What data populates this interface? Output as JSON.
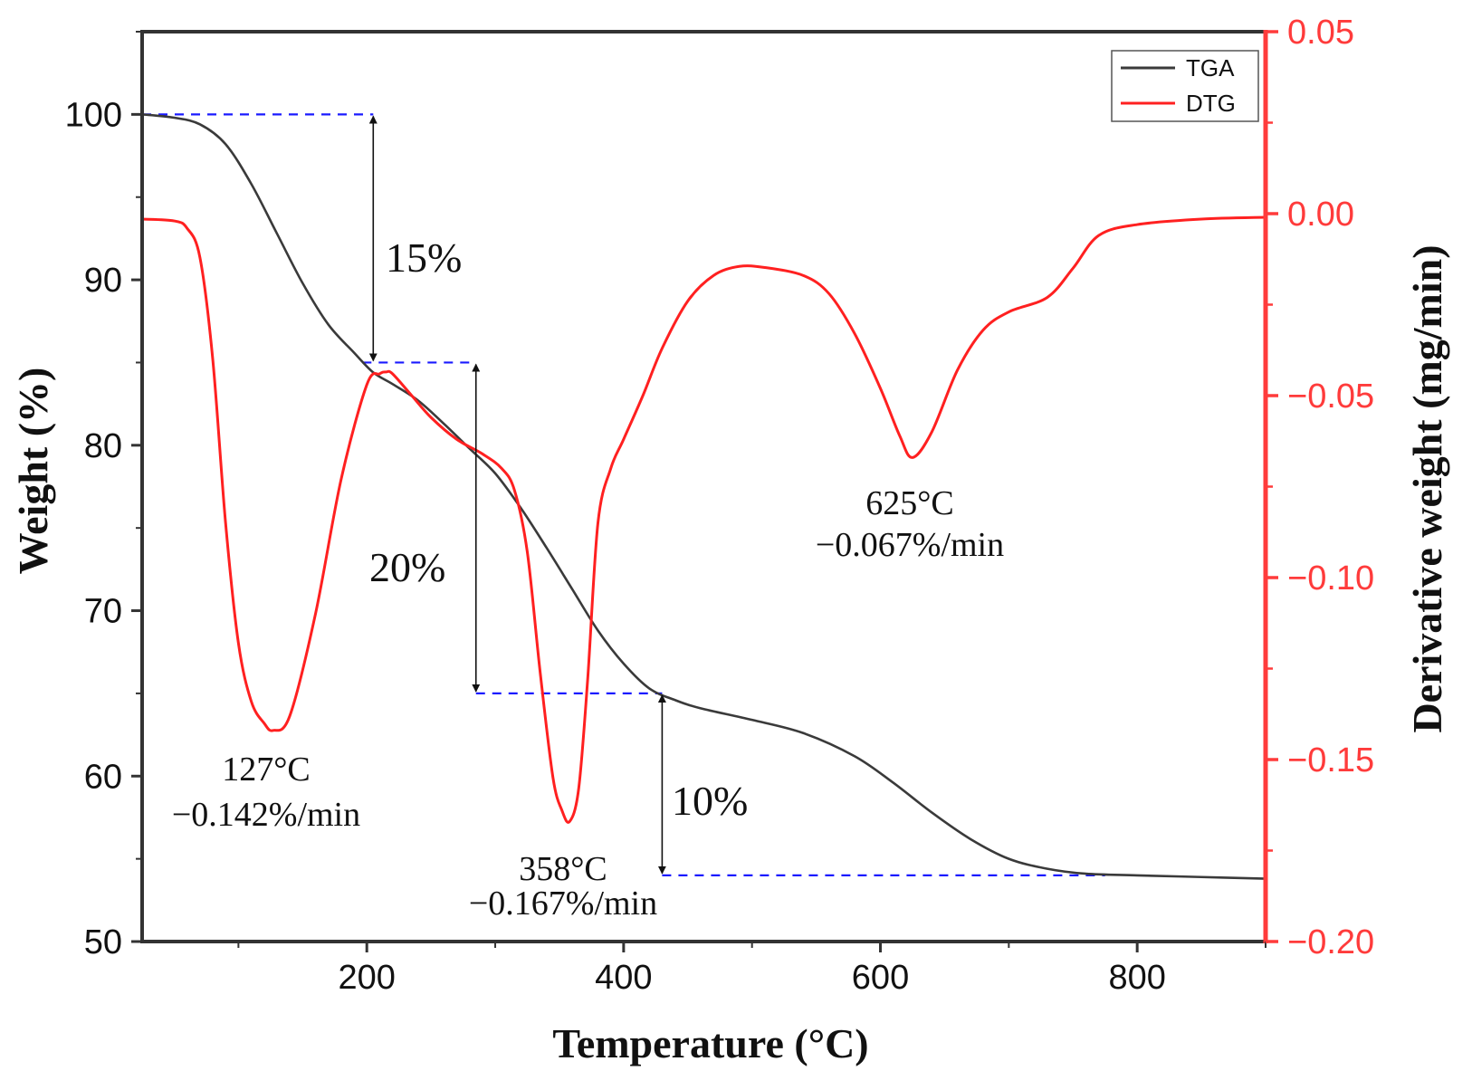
{
  "colors": {
    "tga": "#3a3a3a",
    "dtg": "#ff2020",
    "guide": "#1a1aff",
    "axis": "#333333",
    "right_axis": "#ff3b3b",
    "text": "#111111"
  },
  "chart_data": {
    "type": "line",
    "xlabel": "Temperature (°C)",
    "ylabel_left": "Weight (%)",
    "ylabel_right": "Derivative weight (mg/min)",
    "xlim": [
      25,
      900
    ],
    "ylim_left": [
      50,
      105
    ],
    "ylim_right": [
      -0.2,
      0.05
    ],
    "x_ticks": [
      200,
      400,
      600,
      800
    ],
    "y_left_ticks": [
      50,
      60,
      70,
      80,
      90,
      100
    ],
    "y_right_ticks": [
      -0.2,
      -0.15,
      -0.1,
      -0.05,
      0.0,
      0.05
    ],
    "x_tick_labels": [
      "200",
      "400",
      "600",
      "800"
    ],
    "y_left_tick_labels": [
      "50",
      "60",
      "70",
      "80",
      "90",
      "100"
    ],
    "y_right_tick_labels": [
      "−0.20",
      "−0.15",
      "−0.10",
      "−0.05",
      "0.00",
      "0.05"
    ],
    "legend": {
      "position": "top-right",
      "entries": [
        "TGA",
        "DTG"
      ]
    },
    "series": [
      {
        "name": "TGA",
        "axis": "left",
        "x": [
          25,
          50,
          70,
          90,
          110,
          130,
          150,
          170,
          190,
          205,
          220,
          240,
          260,
          280,
          300,
          320,
          340,
          360,
          380,
          400,
          420,
          440,
          460,
          500,
          540,
          580,
          610,
          640,
          670,
          700,
          730,
          760,
          800,
          850,
          900
        ],
        "values": [
          100,
          99.8,
          99.4,
          98.2,
          95.8,
          92.8,
          89.8,
          87.3,
          85.6,
          84.4,
          83.7,
          82.7,
          81.3,
          79.8,
          78.3,
          76.2,
          73.8,
          71.3,
          68.8,
          66.8,
          65.3,
          64.6,
          64.1,
          63.4,
          62.6,
          61.2,
          59.6,
          57.8,
          56.2,
          55.0,
          54.4,
          54.1,
          54.0,
          53.9,
          53.8
        ]
      },
      {
        "name": "DTG",
        "axis": "right",
        "x": [
          25,
          50,
          60,
          70,
          80,
          90,
          100,
          110,
          120,
          127,
          140,
          160,
          180,
          200,
          210,
          215,
          220,
          235,
          250,
          270,
          290,
          305,
          315,
          325,
          335,
          345,
          352,
          358,
          365,
          372,
          380,
          390,
          400,
          415,
          430,
          450,
          470,
          490,
          510,
          540,
          560,
          580,
          600,
          615,
          625,
          640,
          660,
          680,
          700,
          730,
          750,
          770,
          800,
          850,
          900
        ],
        "values": [
          -0.0015,
          -0.002,
          -0.004,
          -0.012,
          -0.04,
          -0.085,
          -0.118,
          -0.134,
          -0.14,
          -0.142,
          -0.138,
          -0.11,
          -0.073,
          -0.047,
          -0.044,
          -0.0435,
          -0.044,
          -0.05,
          -0.056,
          -0.062,
          -0.066,
          -0.07,
          -0.076,
          -0.093,
          -0.126,
          -0.155,
          -0.164,
          -0.167,
          -0.158,
          -0.128,
          -0.085,
          -0.07,
          -0.062,
          -0.05,
          -0.037,
          -0.024,
          -0.017,
          -0.0145,
          -0.0148,
          -0.017,
          -0.022,
          -0.033,
          -0.048,
          -0.061,
          -0.067,
          -0.06,
          -0.043,
          -0.032,
          -0.027,
          -0.023,
          -0.015,
          -0.006,
          -0.003,
          -0.0015,
          -0.001
        ]
      }
    ],
    "annotations": [
      {
        "temp": "127°C",
        "rate": "−0.142%/min"
      },
      {
        "temp": "358°C",
        "rate": "−0.167%/min"
      },
      {
        "temp": "625°C",
        "rate": "−0.067%/min"
      }
    ],
    "weight_loss_steps": [
      {
        "label": "15%",
        "from_weight": 100,
        "to_weight": 85,
        "x": 205
      },
      {
        "label": "20%",
        "from_weight": 85,
        "to_weight": 65,
        "x": 285
      },
      {
        "label": "10%",
        "from_weight": 65,
        "to_weight": 54,
        "x": 430
      }
    ]
  }
}
